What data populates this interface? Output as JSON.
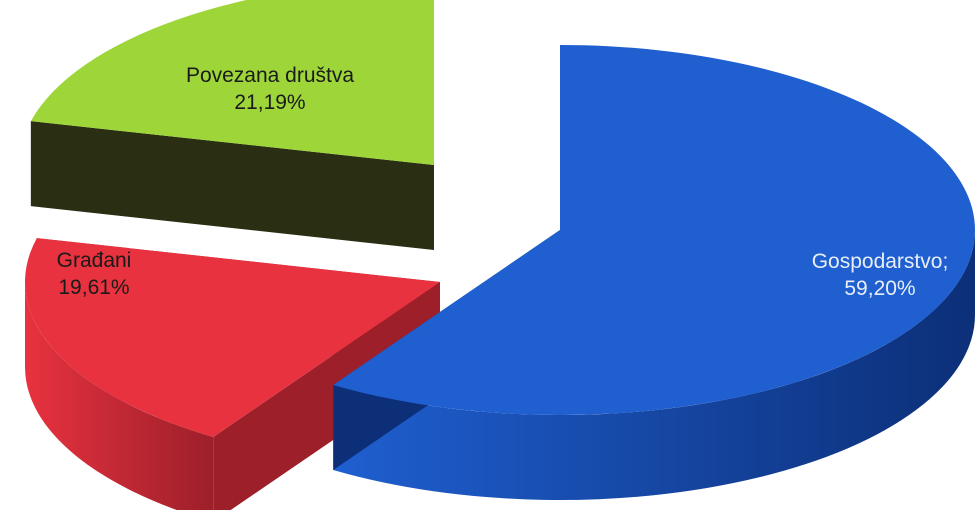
{
  "chart_data": {
    "type": "pie",
    "style": "3d-exploded",
    "categories": [
      "Gospodarstvo;",
      "Građani",
      "Povezana društva"
    ],
    "values": [
      59.2,
      19.61,
      21.19
    ],
    "value_labels": [
      "59,20%",
      "19,61%",
      "21,19%"
    ],
    "colors": {
      "Gospodarstvo;": "#1f5fd0",
      "Građani": "#e8323f",
      "Povezana društva": "#9ed63a"
    },
    "side_colors": {
      "Gospodarstvo;": "#0c2f78",
      "Građani": "#9c1f2a",
      "Povezana društva": "#2a2e12"
    },
    "label_colors": {
      "Gospodarstvo;": "#e8eef8",
      "Građani": "#1a1a1a",
      "Povezana društva": "#1a1a1a"
    }
  }
}
